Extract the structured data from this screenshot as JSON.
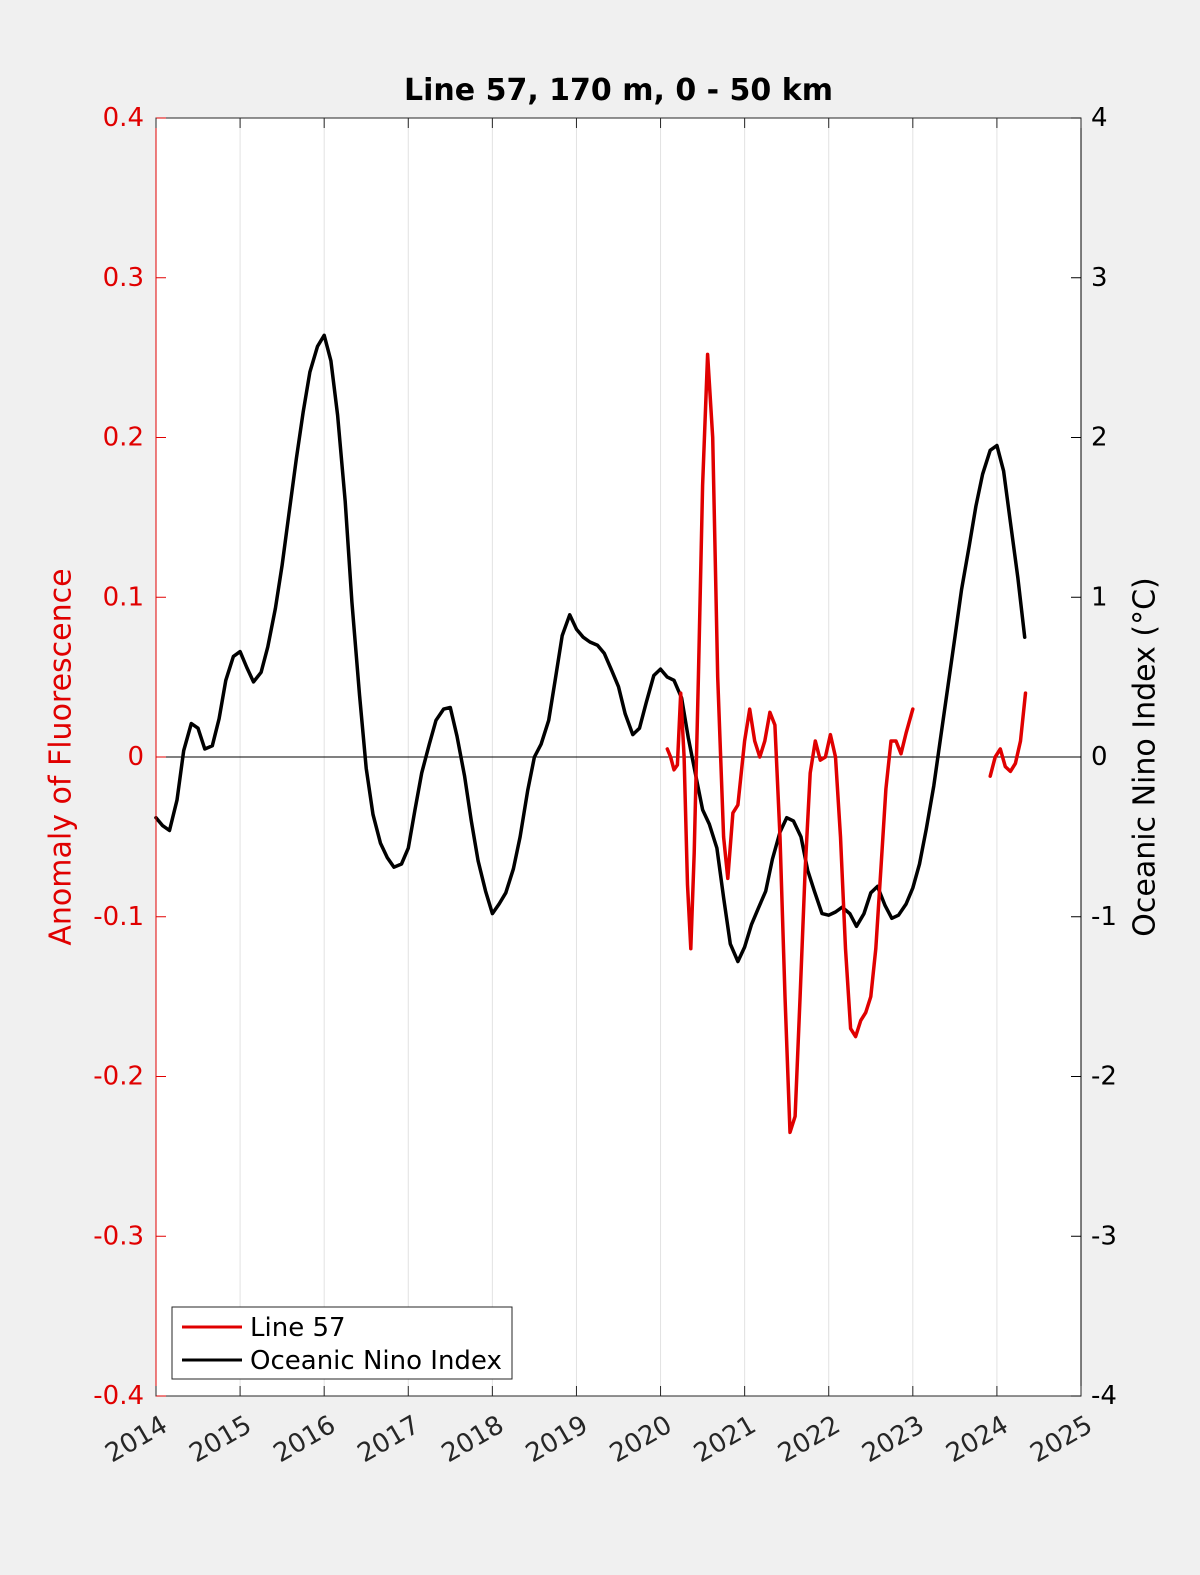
{
  "chart_data": {
    "type": "line",
    "title": "Line 57, 170 m, 0 - 50 km",
    "xlabel": "",
    "ylabel_left": "Anomaly of Fluorescence",
    "ylabel_right": "Oceanic Nino Index (°C)",
    "xlim": [
      2014,
      2025
    ],
    "ylim_left": [
      -0.4,
      0.4
    ],
    "ylim_right": [
      -4,
      4
    ],
    "x_ticks": [
      "2014",
      "2015",
      "2016",
      "2017",
      "2018",
      "2019",
      "2020",
      "2021",
      "2022",
      "2023",
      "2024",
      "2025"
    ],
    "y_left_ticks": [
      "-0.4",
      "-0.3",
      "-0.2",
      "-0.1",
      "0",
      "0.1",
      "0.2",
      "0.3",
      "0.4"
    ],
    "y_right_ticks": [
      "-4",
      "-3",
      "-2",
      "-1",
      "0",
      "1",
      "2",
      "3",
      "4"
    ],
    "grid": "vertical",
    "zero_line": true,
    "legend_position": "bottom-left",
    "colors": {
      "left_axis": "#e00000",
      "right_axis": "#000000",
      "background": "#f0f0f0",
      "plot_bg": "#ffffff"
    },
    "series": [
      {
        "name": "Line 57",
        "axis": "left",
        "color": "#e00000",
        "segments": [
          [
            [
              2020.08,
              0.005
            ],
            [
              2020.12,
              0.0
            ],
            [
              2020.16,
              -0.008
            ],
            [
              2020.2,
              -0.005
            ],
            [
              2020.24,
              0.04
            ],
            [
              2020.28,
              0.0
            ],
            [
              2020.32,
              -0.08
            ],
            [
              2020.36,
              -0.12
            ],
            [
              2020.4,
              -0.06
            ],
            [
              2020.45,
              0.05
            ],
            [
              2020.5,
              0.17
            ],
            [
              2020.56,
              0.252
            ],
            [
              2020.62,
              0.2
            ],
            [
              2020.68,
              0.05
            ],
            [
              2020.75,
              -0.05
            ],
            [
              2020.8,
              -0.076
            ],
            [
              2020.86,
              -0.035
            ],
            [
              2020.92,
              -0.03
            ],
            [
              2021.0,
              0.01
            ],
            [
              2021.06,
              0.03
            ],
            [
              2021.12,
              0.01
            ],
            [
              2021.18,
              0.0
            ],
            [
              2021.24,
              0.01
            ],
            [
              2021.3,
              0.028
            ],
            [
              2021.36,
              0.02
            ],
            [
              2021.42,
              -0.05
            ],
            [
              2021.48,
              -0.15
            ],
            [
              2021.54,
              -0.235
            ],
            [
              2021.6,
              -0.225
            ],
            [
              2021.66,
              -0.15
            ],
            [
              2021.72,
              -0.07
            ],
            [
              2021.78,
              -0.01
            ],
            [
              2021.84,
              0.01
            ],
            [
              2021.9,
              -0.002
            ],
            [
              2021.96,
              0.0
            ],
            [
              2022.02,
              0.014
            ],
            [
              2022.08,
              0.0
            ],
            [
              2022.14,
              -0.05
            ],
            [
              2022.2,
              -0.12
            ],
            [
              2022.26,
              -0.17
            ],
            [
              2022.32,
              -0.175
            ],
            [
              2022.38,
              -0.165
            ],
            [
              2022.44,
              -0.16
            ],
            [
              2022.5,
              -0.15
            ],
            [
              2022.56,
              -0.12
            ],
            [
              2022.62,
              -0.07
            ],
            [
              2022.68,
              -0.02
            ],
            [
              2022.74,
              0.01
            ],
            [
              2022.8,
              0.01
            ],
            [
              2022.86,
              0.002
            ],
            [
              2022.92,
              0.015
            ],
            [
              2023.0,
              0.03
            ]
          ],
          [
            [
              2023.92,
              -0.012
            ],
            [
              2023.98,
              0.0
            ],
            [
              2024.04,
              0.005
            ],
            [
              2024.1,
              -0.006
            ],
            [
              2024.16,
              -0.009
            ],
            [
              2024.22,
              -0.004
            ],
            [
              2024.28,
              0.01
            ],
            [
              2024.34,
              0.04
            ]
          ]
        ]
      },
      {
        "name": "Oceanic Nino Index",
        "axis": "right",
        "color": "#000000",
        "segments": [
          [
            [
              2014.0,
              -0.38
            ],
            [
              2014.08,
              -0.43
            ],
            [
              2014.16,
              -0.46
            ],
            [
              2014.25,
              -0.27
            ],
            [
              2014.33,
              0.04
            ],
            [
              2014.42,
              0.21
            ],
            [
              2014.5,
              0.18
            ],
            [
              2014.58,
              0.05
            ],
            [
              2014.67,
              0.07
            ],
            [
              2014.75,
              0.24
            ],
            [
              2014.83,
              0.48
            ],
            [
              2014.92,
              0.63
            ],
            [
              2015.0,
              0.66
            ],
            [
              2015.08,
              0.56
            ],
            [
              2015.16,
              0.47
            ],
            [
              2015.25,
              0.53
            ],
            [
              2015.33,
              0.69
            ],
            [
              2015.42,
              0.93
            ],
            [
              2015.5,
              1.2
            ],
            [
              2015.58,
              1.52
            ],
            [
              2015.67,
              1.87
            ],
            [
              2015.75,
              2.16
            ],
            [
              2015.83,
              2.41
            ],
            [
              2015.92,
              2.57
            ],
            [
              2016.0,
              2.64
            ],
            [
              2016.08,
              2.48
            ],
            [
              2016.16,
              2.14
            ],
            [
              2016.25,
              1.6
            ],
            [
              2016.33,
              0.97
            ],
            [
              2016.42,
              0.39
            ],
            [
              2016.5,
              -0.07
            ],
            [
              2016.58,
              -0.36
            ],
            [
              2016.67,
              -0.54
            ],
            [
              2016.75,
              -0.63
            ],
            [
              2016.83,
              -0.69
            ],
            [
              2016.92,
              -0.67
            ],
            [
              2017.0,
              -0.57
            ],
            [
              2017.08,
              -0.33
            ],
            [
              2017.16,
              -0.1
            ],
            [
              2017.25,
              0.08
            ],
            [
              2017.33,
              0.23
            ],
            [
              2017.42,
              0.3
            ],
            [
              2017.5,
              0.31
            ],
            [
              2017.58,
              0.13
            ],
            [
              2017.67,
              -0.12
            ],
            [
              2017.75,
              -0.4
            ],
            [
              2017.83,
              -0.65
            ],
            [
              2017.92,
              -0.84
            ],
            [
              2018.0,
              -0.98
            ],
            [
              2018.08,
              -0.92
            ],
            [
              2018.16,
              -0.85
            ],
            [
              2018.25,
              -0.7
            ],
            [
              2018.33,
              -0.5
            ],
            [
              2018.42,
              -0.21
            ],
            [
              2018.5,
              0.0
            ],
            [
              2018.58,
              0.08
            ],
            [
              2018.67,
              0.23
            ],
            [
              2018.75,
              0.49
            ],
            [
              2018.83,
              0.76
            ],
            [
              2018.92,
              0.89
            ],
            [
              2019.0,
              0.8
            ],
            [
              2019.08,
              0.75
            ],
            [
              2019.16,
              0.72
            ],
            [
              2019.25,
              0.7
            ],
            [
              2019.33,
              0.65
            ],
            [
              2019.42,
              0.54
            ],
            [
              2019.5,
              0.44
            ],
            [
              2019.58,
              0.27
            ],
            [
              2019.67,
              0.14
            ],
            [
              2019.75,
              0.18
            ],
            [
              2019.83,
              0.34
            ],
            [
              2019.92,
              0.51
            ],
            [
              2020.0,
              0.55
            ],
            [
              2020.08,
              0.5
            ],
            [
              2020.16,
              0.48
            ],
            [
              2020.25,
              0.37
            ],
            [
              2020.33,
              0.12
            ],
            [
              2020.42,
              -0.12
            ],
            [
              2020.5,
              -0.33
            ],
            [
              2020.58,
              -0.42
            ],
            [
              2020.67,
              -0.57
            ],
            [
              2020.75,
              -0.88
            ],
            [
              2020.83,
              -1.17
            ],
            [
              2020.92,
              -1.28
            ],
            [
              2021.0,
              -1.19
            ],
            [
              2021.08,
              -1.05
            ],
            [
              2021.16,
              -0.95
            ],
            [
              2021.25,
              -0.84
            ],
            [
              2021.33,
              -0.64
            ],
            [
              2021.42,
              -0.47
            ],
            [
              2021.5,
              -0.38
            ],
            [
              2021.58,
              -0.4
            ],
            [
              2021.67,
              -0.5
            ],
            [
              2021.75,
              -0.71
            ],
            [
              2021.83,
              -0.84
            ],
            [
              2021.92,
              -0.98
            ],
            [
              2022.0,
              -0.99
            ],
            [
              2022.08,
              -0.97
            ],
            [
              2022.16,
              -0.94
            ],
            [
              2022.25,
              -0.98
            ],
            [
              2022.33,
              -1.06
            ],
            [
              2022.42,
              -0.98
            ],
            [
              2022.5,
              -0.85
            ],
            [
              2022.58,
              -0.81
            ],
            [
              2022.67,
              -0.93
            ],
            [
              2022.75,
              -1.01
            ],
            [
              2022.83,
              -0.99
            ],
            [
              2022.92,
              -0.92
            ],
            [
              2023.0,
              -0.82
            ],
            [
              2023.08,
              -0.67
            ],
            [
              2023.16,
              -0.45
            ],
            [
              2023.25,
              -0.18
            ],
            [
              2023.33,
              0.12
            ],
            [
              2023.42,
              0.45
            ],
            [
              2023.5,
              0.75
            ],
            [
              2023.58,
              1.05
            ],
            [
              2023.67,
              1.32
            ],
            [
              2023.75,
              1.57
            ],
            [
              2023.83,
              1.77
            ],
            [
              2023.92,
              1.92
            ],
            [
              2024.0,
              1.95
            ],
            [
              2024.08,
              1.79
            ],
            [
              2024.16,
              1.47
            ],
            [
              2024.25,
              1.12
            ],
            [
              2024.33,
              0.75
            ]
          ]
        ]
      }
    ]
  }
}
